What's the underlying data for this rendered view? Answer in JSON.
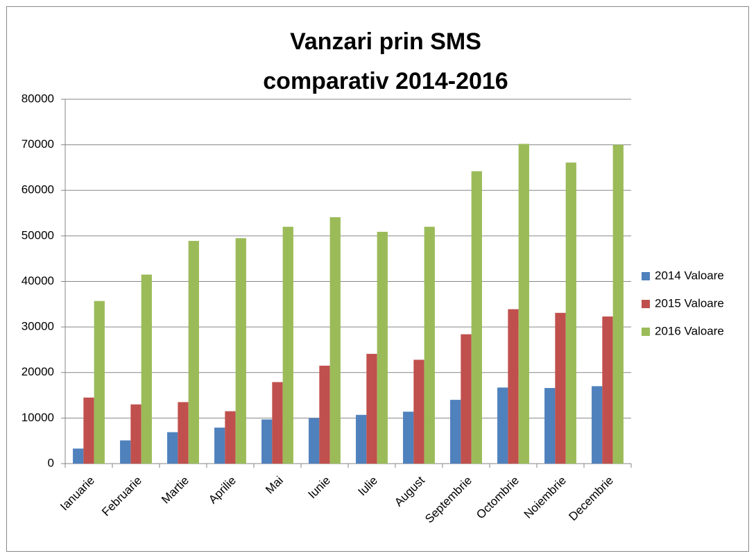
{
  "chart_data": {
    "type": "bar",
    "title": [
      "Vanzari prin SMS",
      "comparativ 2014-2016"
    ],
    "categories": [
      "Ianuarie",
      "Februarie",
      "Martie",
      "Aprilie",
      "Mai",
      "Iunie",
      "Iulie",
      "August",
      "Septembrie",
      "Octombrie",
      "Noiembrie",
      "Decembrie"
    ],
    "series": [
      {
        "name": "2014 Valoare",
        "color": "#4f81bd",
        "values": [
          3300,
          5100,
          6900,
          7900,
          9700,
          10000,
          10700,
          11400,
          14000,
          16700,
          16600,
          17000
        ]
      },
      {
        "name": "2015 Valoare",
        "color": "#c0504d",
        "values": [
          14500,
          13000,
          13500,
          11500,
          17900,
          21500,
          24100,
          22800,
          28400,
          33900,
          33100,
          32300
        ]
      },
      {
        "name": "2016 Valoare",
        "color": "#9bbb59",
        "values": [
          35700,
          41500,
          48900,
          49500,
          52000,
          54100,
          50900,
          52000,
          64200,
          70200,
          66100,
          70000
        ]
      }
    ],
    "ylim": [
      0,
      80000
    ],
    "yticks": [
      0,
      10000,
      20000,
      30000,
      40000,
      50000,
      60000,
      70000,
      80000
    ],
    "grid": true,
    "legend": "right"
  }
}
